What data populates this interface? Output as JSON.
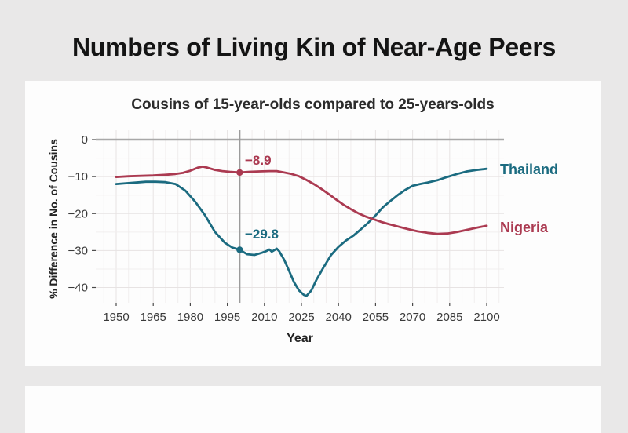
{
  "page": {
    "title": "Numbers of Living Kin of Near-Age Peers",
    "background_color": "#e9e8e8",
    "card_color": "#fdfdfd"
  },
  "chart_data": {
    "type": "line",
    "title": "Cousins of 15-year-olds compared to 25-years-olds",
    "xlabel": "Year",
    "ylabel": "% Difference in No. of Cousins",
    "xticks": [
      1950,
      1965,
      1980,
      1995,
      2010,
      2025,
      2040,
      2055,
      2070,
      2085,
      2100
    ],
    "yticks": [
      0,
      -10,
      -20,
      -30,
      -40
    ],
    "xlim": [
      1941.7,
      2107
    ],
    "ylim": [
      -44.1,
      2.55
    ],
    "grid": true,
    "legend_position": "inline-right-end-labels",
    "reference_line": {
      "x": 2000,
      "color": "#9c9c9c"
    },
    "zero_line_color": "#a8a8a8",
    "series": [
      {
        "name": "Thailand",
        "color": "#1b6b80",
        "marked_point": {
          "x": 2000,
          "y": -29.8,
          "label": "−29.8"
        },
        "points": [
          [
            1950,
            -12.0
          ],
          [
            1954,
            -11.8
          ],
          [
            1958,
            -11.6
          ],
          [
            1962,
            -11.4
          ],
          [
            1966,
            -11.4
          ],
          [
            1970,
            -11.5
          ],
          [
            1974,
            -12.0
          ],
          [
            1978,
            -13.8
          ],
          [
            1982,
            -16.8
          ],
          [
            1986,
            -20.5
          ],
          [
            1990,
            -25.0
          ],
          [
            1994,
            -27.9
          ],
          [
            1997,
            -29.2
          ],
          [
            2000,
            -29.8
          ],
          [
            2003,
            -31.0
          ],
          [
            2006,
            -31.2
          ],
          [
            2009,
            -30.6
          ],
          [
            2011,
            -30.1
          ],
          [
            2012,
            -29.7
          ],
          [
            2013,
            -30.3
          ],
          [
            2014,
            -29.9
          ],
          [
            2015,
            -29.5
          ],
          [
            2016,
            -30.2
          ],
          [
            2018,
            -32.5
          ],
          [
            2020,
            -35.5
          ],
          [
            2022,
            -38.6
          ],
          [
            2024,
            -40.8
          ],
          [
            2026,
            -42.0
          ],
          [
            2027,
            -42.3
          ],
          [
            2029,
            -40.8
          ],
          [
            2031,
            -38.0
          ],
          [
            2034,
            -34.5
          ],
          [
            2037,
            -31.2
          ],
          [
            2040,
            -29.0
          ],
          [
            2043,
            -27.3
          ],
          [
            2046,
            -26.0
          ],
          [
            2049,
            -24.3
          ],
          [
            2052,
            -22.5
          ],
          [
            2055,
            -20.5
          ],
          [
            2058,
            -18.3
          ],
          [
            2061,
            -16.6
          ],
          [
            2064,
            -15.0
          ],
          [
            2067,
            -13.6
          ],
          [
            2070,
            -12.5
          ],
          [
            2073,
            -12.0
          ],
          [
            2076,
            -11.6
          ],
          [
            2080,
            -11.0
          ],
          [
            2084,
            -10.1
          ],
          [
            2088,
            -9.3
          ],
          [
            2092,
            -8.6
          ],
          [
            2096,
            -8.2
          ],
          [
            2100,
            -7.9
          ]
        ]
      },
      {
        "name": "Nigeria",
        "color": "#ab3a51",
        "marked_point": {
          "x": 2000,
          "y": -8.9,
          "label": "−8.9"
        },
        "points": [
          [
            1950,
            -10.1
          ],
          [
            1955,
            -9.9
          ],
          [
            1960,
            -9.8
          ],
          [
            1965,
            -9.7
          ],
          [
            1970,
            -9.5
          ],
          [
            1974,
            -9.3
          ],
          [
            1977,
            -9.0
          ],
          [
            1980,
            -8.4
          ],
          [
            1983,
            -7.6
          ],
          [
            1985,
            -7.3
          ],
          [
            1987,
            -7.6
          ],
          [
            1990,
            -8.2
          ],
          [
            1993,
            -8.5
          ],
          [
            1996,
            -8.7
          ],
          [
            2000,
            -8.9
          ],
          [
            2004,
            -8.7
          ],
          [
            2008,
            -8.6
          ],
          [
            2012,
            -8.5
          ],
          [
            2015,
            -8.5
          ],
          [
            2018,
            -8.9
          ],
          [
            2021,
            -9.3
          ],
          [
            2024,
            -9.9
          ],
          [
            2027,
            -10.9
          ],
          [
            2030,
            -12.0
          ],
          [
            2033,
            -13.3
          ],
          [
            2036,
            -14.7
          ],
          [
            2039,
            -16.2
          ],
          [
            2042,
            -17.6
          ],
          [
            2045,
            -18.8
          ],
          [
            2048,
            -19.9
          ],
          [
            2051,
            -20.8
          ],
          [
            2054,
            -21.5
          ],
          [
            2057,
            -22.2
          ],
          [
            2060,
            -22.8
          ],
          [
            2064,
            -23.5
          ],
          [
            2068,
            -24.2
          ],
          [
            2072,
            -24.8
          ],
          [
            2076,
            -25.2
          ],
          [
            2080,
            -25.5
          ],
          [
            2084,
            -25.4
          ],
          [
            2088,
            -25.0
          ],
          [
            2092,
            -24.4
          ],
          [
            2096,
            -23.8
          ],
          [
            2100,
            -23.3
          ]
        ]
      }
    ]
  }
}
